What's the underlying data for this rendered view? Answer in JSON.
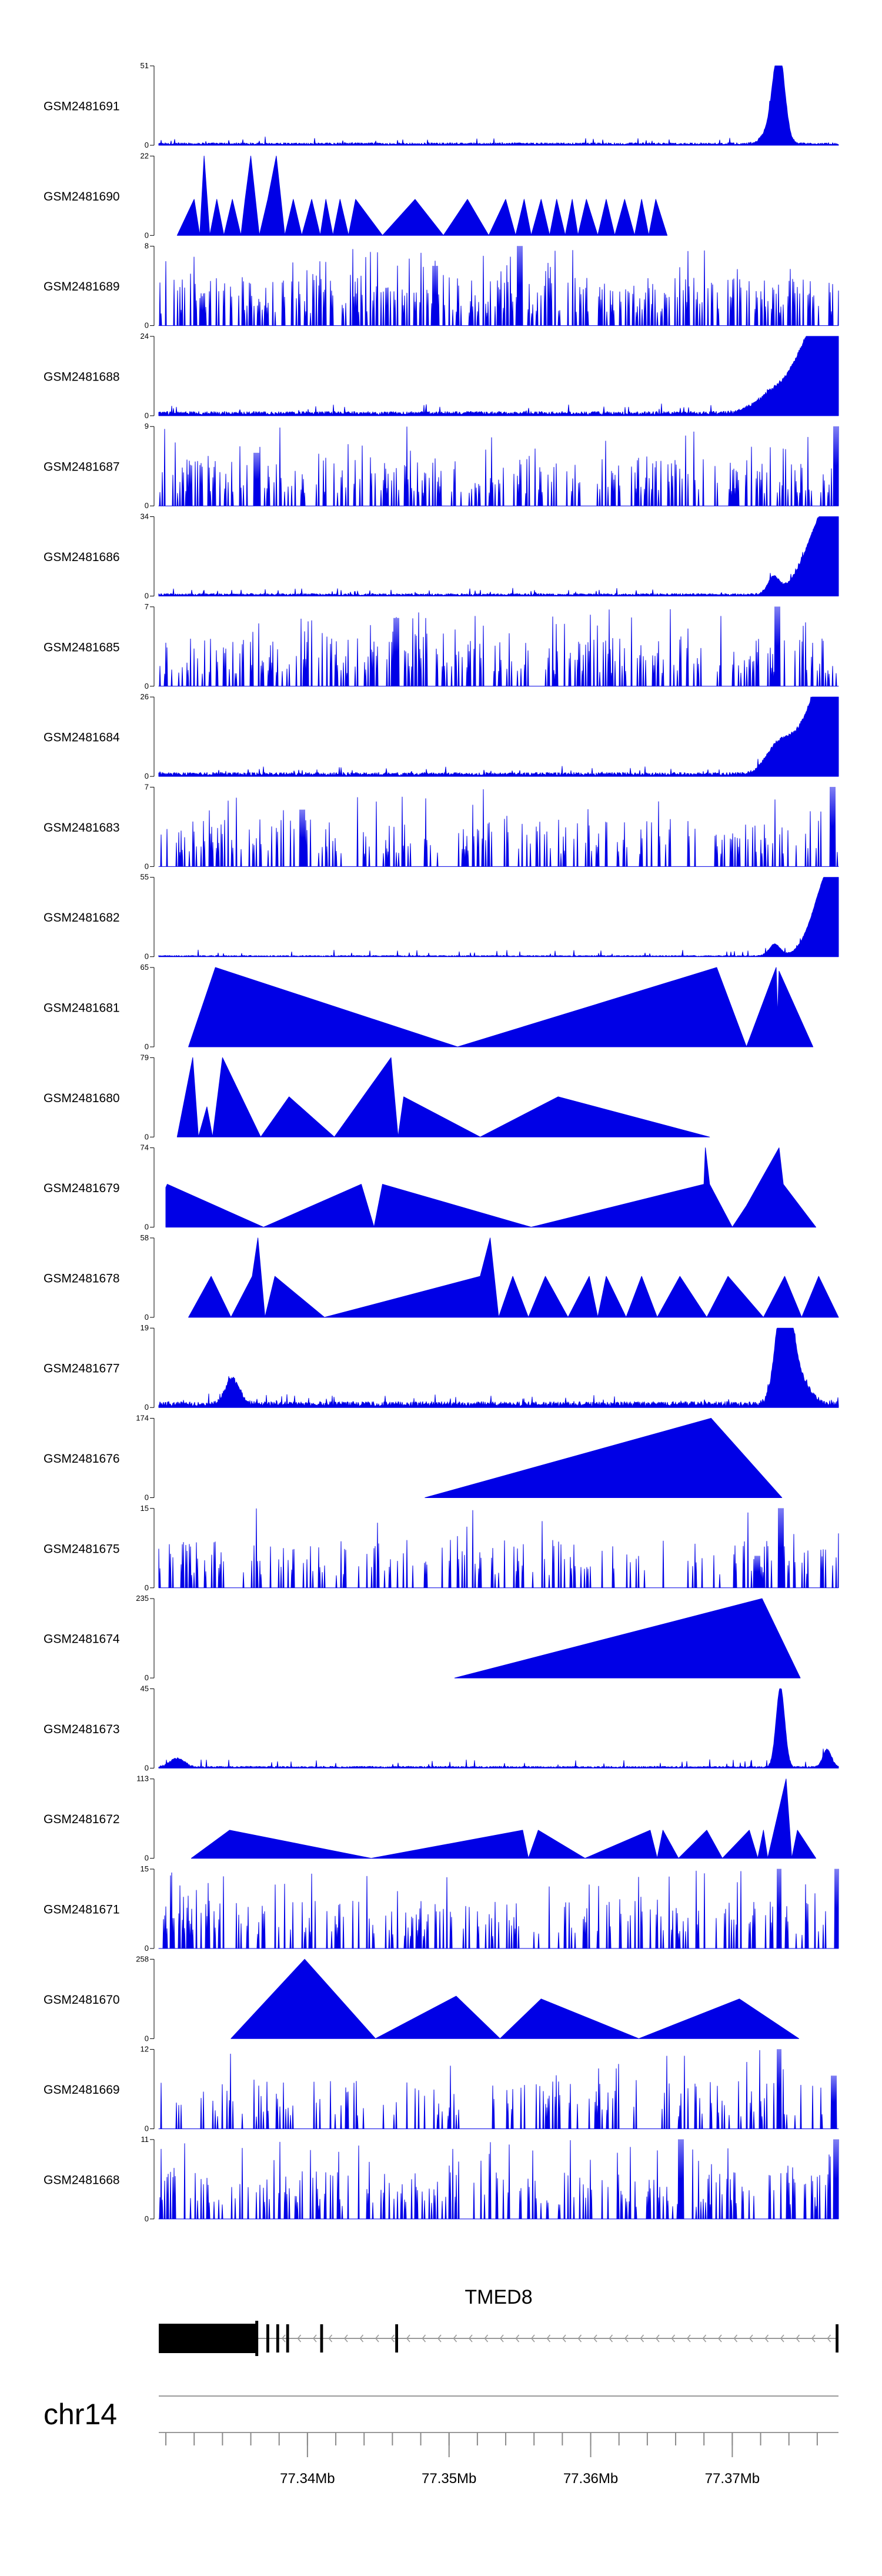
{
  "chart_data": {
    "type": "area",
    "title": "",
    "chromosome": "chr14",
    "xlim_mb": [
      77.3295,
      77.3775
    ],
    "x_ticks_mb": [
      77.34,
      77.35,
      77.36,
      77.37
    ],
    "x_tick_labels": [
      "77.34Mb",
      "77.35Mb",
      "77.36Mb",
      "77.37Mb"
    ],
    "gene": {
      "name": "TMED8",
      "strand": "-",
      "span_mb": [
        77.3295,
        77.3775
      ],
      "exons_mb": [
        [
          77.3295,
          77.3364
        ],
        [
          77.3371,
          77.3373
        ],
        [
          77.3378,
          77.338
        ],
        [
          77.3385,
          77.3387
        ],
        [
          77.3409,
          77.3411
        ],
        [
          77.3462,
          77.3464
        ],
        [
          77.3773,
          77.3775
        ]
      ]
    },
    "tracks": [
      {
        "sample": "GSM2481691",
        "ymax": 51,
        "ymax_label": "51",
        "style": "dense",
        "baseline": 1.5,
        "noise": 0.05,
        "features": [
          {
            "x": 77.3733,
            "y": 51,
            "w": 0.0004
          },
          {
            "x": 77.3729,
            "y": 12,
            "w": 0.0006
          }
        ]
      },
      {
        "sample": "GSM2481690",
        "ymax": 22,
        "ymax_label": "22",
        "style": "sparse",
        "points": [
          [
            77.3308,
            0
          ],
          [
            77.332,
            10
          ],
          [
            77.3324,
            0
          ],
          [
            77.3327,
            22
          ],
          [
            77.3331,
            0
          ],
          [
            77.3336,
            10
          ],
          [
            77.3341,
            0
          ],
          [
            77.3347,
            10
          ],
          [
            77.3353,
            0
          ],
          [
            77.3356,
            10
          ],
          [
            77.336,
            22
          ],
          [
            77.3366,
            0
          ],
          [
            77.3372,
            10
          ],
          [
            77.3378,
            22
          ],
          [
            77.3384,
            0
          ],
          [
            77.339,
            10
          ],
          [
            77.3396,
            0
          ],
          [
            77.3403,
            10
          ],
          [
            77.3409,
            0
          ],
          [
            77.3413,
            10
          ],
          [
            77.3418,
            0
          ],
          [
            77.3423,
            10
          ],
          [
            77.3429,
            0
          ],
          [
            77.3434,
            10
          ],
          [
            77.3453,
            0
          ],
          [
            77.3476,
            10
          ],
          [
            77.3496,
            0
          ],
          [
            77.3513,
            10
          ],
          [
            77.3528,
            0
          ],
          [
            77.354,
            10
          ],
          [
            77.3547,
            0
          ],
          [
            77.3553,
            10
          ],
          [
            77.3558,
            0
          ],
          [
            77.3565,
            10
          ],
          [
            77.3571,
            0
          ],
          [
            77.3576,
            10
          ],
          [
            77.3582,
            0
          ],
          [
            77.3587,
            10
          ],
          [
            77.3591,
            0
          ],
          [
            77.3597,
            10
          ],
          [
            77.3605,
            0
          ],
          [
            77.3611,
            10
          ],
          [
            77.3617,
            0
          ],
          [
            77.3624,
            10
          ],
          [
            77.3631,
            0
          ],
          [
            77.3636,
            10
          ],
          [
            77.3641,
            0
          ],
          [
            77.3646,
            10
          ],
          [
            77.3654,
            0
          ]
        ]
      },
      {
        "sample": "GSM2481689",
        "ymax": 8,
        "ymax_label": "8",
        "style": "spiky",
        "height": 0.42,
        "spike": 0.85,
        "features": [
          {
            "x": 77.355,
            "y": 8,
            "w": 0.0002
          },
          {
            "x": 77.349,
            "y": 6,
            "w": 0.0002
          }
        ]
      },
      {
        "sample": "GSM2481688",
        "ymax": 24,
        "ymax_label": "24",
        "style": "dense",
        "baseline": 1.2,
        "noise": 0.07,
        "features": [
          {
            "x": 77.377,
            "y": 24,
            "w": 0.0016
          },
          {
            "x": 77.3755,
            "y": 10,
            "w": 0.0014
          },
          {
            "x": 77.3728,
            "y": 5,
            "w": 0.0012
          }
        ]
      },
      {
        "sample": "GSM2481687",
        "ymax": 9,
        "ymax_label": "9",
        "style": "spiky",
        "height": 0.35,
        "spike": 0.95,
        "features": [
          {
            "x": 77.3773,
            "y": 9,
            "w": 0.0002
          },
          {
            "x": 77.3364,
            "y": 6,
            "w": 0.0002
          }
        ]
      },
      {
        "sample": "GSM2481686",
        "ymax": 34,
        "ymax_label": "34",
        "style": "dense",
        "baseline": 1.0,
        "noise": 0.05,
        "features": [
          {
            "x": 77.3772,
            "y": 34,
            "w": 0.0013
          },
          {
            "x": 77.3758,
            "y": 10,
            "w": 0.0013
          },
          {
            "x": 77.3729,
            "y": 7,
            "w": 0.0004
          }
        ]
      },
      {
        "sample": "GSM2481685",
        "ymax": 7,
        "ymax_label": "7",
        "style": "spiky",
        "height": 0.4,
        "spike": 0.95,
        "features": [
          {
            "x": 77.3732,
            "y": 7,
            "w": 0.0002
          },
          {
            "x": 77.3463,
            "y": 6,
            "w": 0.0002
          }
        ]
      },
      {
        "sample": "GSM2481684",
        "ymax": 26,
        "ymax_label": "26",
        "style": "dense",
        "baseline": 1.2,
        "noise": 0.06,
        "features": [
          {
            "x": 77.3771,
            "y": 26,
            "w": 0.0014
          },
          {
            "x": 77.3758,
            "y": 10,
            "w": 0.0013
          },
          {
            "x": 77.3733,
            "y": 9,
            "w": 0.0009
          }
        ]
      },
      {
        "sample": "GSM2481683",
        "ymax": 7,
        "ymax_label": "7",
        "style": "spiky",
        "height": 0.3,
        "spike": 0.7,
        "features": [
          {
            "x": 77.3771,
            "y": 7,
            "w": 0.0002
          },
          {
            "x": 77.3396,
            "y": 5,
            "w": 0.0002
          }
        ]
      },
      {
        "sample": "GSM2481682",
        "ymax": 55,
        "ymax_label": "55",
        "style": "dense",
        "baseline": 0.8,
        "noise": 0.05,
        "features": [
          {
            "x": 77.3773,
            "y": 55,
            "w": 0.0011
          },
          {
            "x": 77.3762,
            "y": 14,
            "w": 0.001
          },
          {
            "x": 77.373,
            "y": 8,
            "w": 0.0004
          }
        ]
      },
      {
        "sample": "GSM2481681",
        "ymax": 65,
        "ymax_label": "65",
        "style": "sparse",
        "points": [
          [
            77.3316,
            0
          ],
          [
            77.3335,
            65
          ],
          [
            77.3506,
            0
          ],
          [
            77.3689,
            65
          ],
          [
            77.371,
            0
          ],
          [
            77.3731,
            65
          ],
          [
            77.3732,
            25
          ],
          [
            77.3733,
            62
          ],
          [
            77.3757,
            0
          ]
        ]
      },
      {
        "sample": "GSM2481680",
        "ymax": 79,
        "ymax_label": "79",
        "style": "sparse",
        "points": [
          [
            77.3308,
            0
          ],
          [
            77.3319,
            79
          ],
          [
            77.3323,
            0
          ],
          [
            77.3329,
            30
          ],
          [
            77.3333,
            0
          ],
          [
            77.334,
            79
          ],
          [
            77.3367,
            0
          ],
          [
            77.3387,
            40
          ],
          [
            77.3419,
            0
          ],
          [
            77.3459,
            79
          ],
          [
            77.3464,
            0
          ],
          [
            77.3468,
            40
          ],
          [
            77.3522,
            0
          ],
          [
            77.3577,
            40
          ],
          [
            77.3684,
            0
          ]
        ]
      },
      {
        "sample": "GSM2481679",
        "ymax": 74,
        "ymax_label": "74",
        "style": "sparse",
        "points": [
          [
            77.33,
            37
          ],
          [
            77.3301,
            40
          ],
          [
            77.3369,
            0
          ],
          [
            77.3438,
            40
          ],
          [
            77.3447,
            0
          ],
          [
            77.3453,
            40
          ],
          [
            77.3558,
            0
          ],
          [
            77.368,
            40
          ],
          [
            77.3681,
            74
          ],
          [
            77.3684,
            40
          ],
          [
            77.37,
            0
          ],
          [
            77.371,
            20
          ],
          [
            77.3733,
            74
          ],
          [
            77.3736,
            40
          ],
          [
            77.3759,
            0
          ]
        ]
      },
      {
        "sample": "GSM2481678",
        "ymax": 58,
        "ymax_label": "58",
        "style": "sparse",
        "points": [
          [
            77.3316,
            0
          ],
          [
            77.3332,
            30
          ],
          [
            77.3346,
            0
          ],
          [
            77.3361,
            30
          ],
          [
            77.3365,
            58
          ],
          [
            77.337,
            0
          ],
          [
            77.3377,
            30
          ],
          [
            77.3412,
            0
          ],
          [
            77.3522,
            30
          ],
          [
            77.3529,
            58
          ],
          [
            77.3535,
            0
          ],
          [
            77.3545,
            30
          ],
          [
            77.3556,
            0
          ],
          [
            77.3568,
            30
          ],
          [
            77.3584,
            0
          ],
          [
            77.3599,
            30
          ],
          [
            77.3605,
            0
          ],
          [
            77.3611,
            30
          ],
          [
            77.3625,
            0
          ],
          [
            77.3636,
            30
          ],
          [
            77.3647,
            0
          ],
          [
            77.3663,
            30
          ],
          [
            77.3682,
            0
          ],
          [
            77.3697,
            30
          ],
          [
            77.3722,
            0
          ],
          [
            77.3737,
            30
          ],
          [
            77.3749,
            0
          ],
          [
            77.3761,
            30
          ],
          [
            77.3775,
            0
          ]
        ]
      },
      {
        "sample": "GSM2481677",
        "ymax": 19,
        "ymax_label": "19",
        "style": "dense",
        "baseline": 1.3,
        "noise": 0.08,
        "features": [
          {
            "x": 77.3735,
            "y": 19,
            "w": 0.0005
          },
          {
            "x": 77.374,
            "y": 10,
            "w": 0.0005
          },
          {
            "x": 77.3746,
            "y": 6,
            "w": 0.0008
          },
          {
            "x": 77.3347,
            "y": 6,
            "w": 0.0005
          }
        ]
      },
      {
        "sample": "GSM2481676",
        "ymax": 174,
        "ymax_label": "174",
        "style": "sparse",
        "points": [
          [
            77.3483,
            0
          ],
          [
            77.3685,
            174
          ],
          [
            77.3735,
            0
          ]
        ]
      },
      {
        "sample": "GSM2481675",
        "ymax": 15,
        "ymax_label": "15",
        "style": "spiky",
        "height": 0.25,
        "spike": 0.35,
        "features": [
          {
            "x": 77.3734,
            "y": 15,
            "w": 0.0002
          },
          {
            "x": 77.3718,
            "y": 6,
            "w": 0.0002
          }
        ]
      },
      {
        "sample": "GSM2481674",
        "ymax": 235,
        "ymax_label": "235",
        "style": "sparse",
        "points": [
          [
            77.3504,
            0
          ],
          [
            77.3721,
            235
          ],
          [
            77.3748,
            0
          ]
        ]
      },
      {
        "sample": "GSM2481673",
        "ymax": 45,
        "ymax_label": "45",
        "style": "dense",
        "baseline": 1.0,
        "noise": 0.06,
        "features": [
          {
            "x": 77.3734,
            "y": 45,
            "w": 0.0003
          },
          {
            "x": 77.3767,
            "y": 10,
            "w": 0.0003
          },
          {
            "x": 77.3308,
            "y": 5,
            "w": 0.0005
          }
        ]
      },
      {
        "sample": "GSM2481672",
        "ymax": 113,
        "ymax_label": "113",
        "style": "sparse",
        "points": [
          [
            77.3318,
            0
          ],
          [
            77.3345,
            40
          ],
          [
            77.3445,
            0
          ],
          [
            77.3552,
            40
          ],
          [
            77.3556,
            0
          ],
          [
            77.3563,
            40
          ],
          [
            77.3596,
            0
          ],
          [
            77.3642,
            40
          ],
          [
            77.3647,
            0
          ],
          [
            77.3651,
            40
          ],
          [
            77.3662,
            0
          ],
          [
            77.3682,
            40
          ],
          [
            77.3693,
            0
          ],
          [
            77.3712,
            40
          ],
          [
            77.3718,
            0
          ],
          [
            77.3722,
            40
          ],
          [
            77.3725,
            0
          ],
          [
            77.3738,
            113
          ],
          [
            77.3742,
            0
          ],
          [
            77.3746,
            40
          ],
          [
            77.3759,
            0
          ]
        ]
      },
      {
        "sample": "GSM2481671",
        "ymax": 15,
        "ymax_label": "15",
        "style": "spiky",
        "height": 0.3,
        "spike": 0.75,
        "features": [
          {
            "x": 77.3733,
            "y": 15,
            "w": 0.0002
          },
          {
            "x": 77.3774,
            "y": 15,
            "w": 0.0002
          }
        ]
      },
      {
        "sample": "GSM2481670",
        "ymax": 258,
        "ymax_label": "258",
        "style": "sparse",
        "points": [
          [
            77.3346,
            0
          ],
          [
            77.3398,
            258
          ],
          [
            77.3448,
            0
          ],
          [
            77.3505,
            138
          ],
          [
            77.3536,
            0
          ],
          [
            77.3565,
            129
          ],
          [
            77.3634,
            0
          ],
          [
            77.3705,
            129
          ],
          [
            77.3747,
            0
          ]
        ]
      },
      {
        "sample": "GSM2481669",
        "ymax": 12,
        "ymax_label": "12",
        "style": "spiky",
        "height": 0.22,
        "spike": 0.45,
        "features": [
          {
            "x": 77.3733,
            "y": 12,
            "w": 0.0002
          },
          {
            "x": 77.3772,
            "y": 8,
            "w": 0.0002
          }
        ]
      },
      {
        "sample": "GSM2481668",
        "ymax": 11,
        "ymax_label": "11",
        "style": "spiky",
        "height": 0.32,
        "spike": 0.75,
        "features": [
          {
            "x": 77.3664,
            "y": 11,
            "w": 0.0002
          },
          {
            "x": 77.3773,
            "y": 11,
            "w": 0.0002
          }
        ]
      }
    ]
  }
}
